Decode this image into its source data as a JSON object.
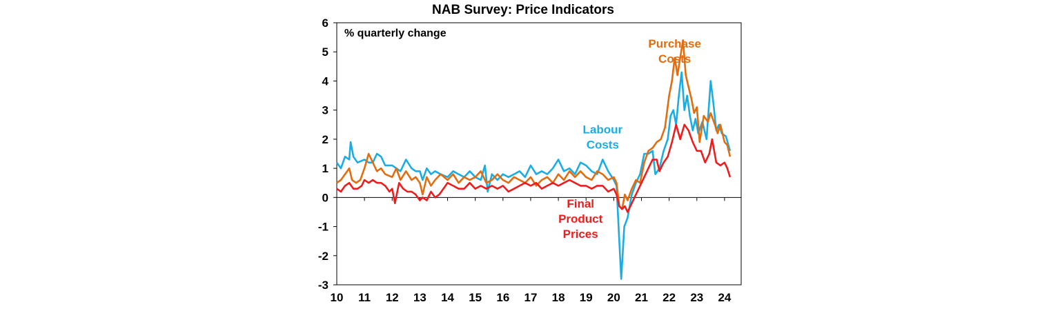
{
  "chart_data": {
    "type": "line",
    "title": "NAB Survey: Price Indicators",
    "ylabel": "% quarterly change",
    "xlabel": "",
    "ylim": [
      -3,
      6
    ],
    "xlim": [
      2010,
      2024.6
    ],
    "grid": false,
    "legend": "inline labels",
    "y_ticks": [
      -3,
      -2,
      -1,
      0,
      1,
      2,
      3,
      4,
      5,
      6
    ],
    "x_ticks": [
      {
        "value": 2010,
        "label": "10"
      },
      {
        "value": 2011,
        "label": "11"
      },
      {
        "value": 2012,
        "label": "12"
      },
      {
        "value": 2013,
        "label": "13"
      },
      {
        "value": 2014,
        "label": "14"
      },
      {
        "value": 2015,
        "label": "15"
      },
      {
        "value": 2016,
        "label": "16"
      },
      {
        "value": 2017,
        "label": "17"
      },
      {
        "value": 2018,
        "label": "18"
      },
      {
        "value": 2019,
        "label": "19"
      },
      {
        "value": 2020,
        "label": "20"
      },
      {
        "value": 2021,
        "label": "21"
      },
      {
        "value": 2022,
        "label": "22"
      },
      {
        "value": 2023,
        "label": "23"
      },
      {
        "value": 2024,
        "label": "24"
      }
    ],
    "series": [
      {
        "name": "Labour Costs",
        "label_lines": [
          "Labour",
          "Costs"
        ],
        "label_anchor": {
          "x": 2019.6,
          "y": 2.2
        },
        "color": "#1aade4",
        "points": [
          [
            2010.0,
            1.2
          ],
          [
            2010.15,
            1.0
          ],
          [
            2010.3,
            1.4
          ],
          [
            2010.45,
            1.3
          ],
          [
            2010.5,
            1.9
          ],
          [
            2010.6,
            1.4
          ],
          [
            2010.75,
            1.2
          ],
          [
            2011.0,
            1.3
          ],
          [
            2011.15,
            1.2
          ],
          [
            2011.3,
            1.2
          ],
          [
            2011.45,
            1.5
          ],
          [
            2011.6,
            1.4
          ],
          [
            2011.75,
            1.1
          ],
          [
            2012.0,
            1.1
          ],
          [
            2012.15,
            1.0
          ],
          [
            2012.3,
            0.9
          ],
          [
            2012.5,
            1.3
          ],
          [
            2012.7,
            1.0
          ],
          [
            2012.85,
            0.9
          ],
          [
            2013.0,
            0.9
          ],
          [
            2013.1,
            0.6
          ],
          [
            2013.25,
            1.0
          ],
          [
            2013.4,
            0.8
          ],
          [
            2013.55,
            0.9
          ],
          [
            2013.75,
            0.8
          ],
          [
            2014.0,
            0.7
          ],
          [
            2014.2,
            0.9
          ],
          [
            2014.4,
            0.8
          ],
          [
            2014.6,
            0.7
          ],
          [
            2014.8,
            0.9
          ],
          [
            2015.0,
            0.7
          ],
          [
            2015.2,
            0.6
          ],
          [
            2015.35,
            1.1
          ],
          [
            2015.45,
            0.2
          ],
          [
            2015.6,
            0.8
          ],
          [
            2015.8,
            0.6
          ],
          [
            2016.0,
            0.8
          ],
          [
            2016.2,
            0.7
          ],
          [
            2016.4,
            0.8
          ],
          [
            2016.6,
            0.9
          ],
          [
            2016.8,
            0.7
          ],
          [
            2017.0,
            1.1
          ],
          [
            2017.2,
            0.8
          ],
          [
            2017.4,
            0.9
          ],
          [
            2017.6,
            0.8
          ],
          [
            2017.8,
            1.0
          ],
          [
            2018.0,
            1.3
          ],
          [
            2018.2,
            0.9
          ],
          [
            2018.4,
            1.0
          ],
          [
            2018.6,
            0.8
          ],
          [
            2018.8,
            1.2
          ],
          [
            2019.0,
            1.1
          ],
          [
            2019.2,
            0.9
          ],
          [
            2019.4,
            0.8
          ],
          [
            2019.6,
            1.3
          ],
          [
            2019.8,
            0.9
          ],
          [
            2020.0,
            0.6
          ],
          [
            2020.1,
            0.4
          ],
          [
            2020.2,
            -1.5
          ],
          [
            2020.27,
            -2.8
          ],
          [
            2020.38,
            -1.0
          ],
          [
            2020.5,
            -0.7
          ],
          [
            2020.65,
            0.1
          ],
          [
            2020.8,
            0.5
          ],
          [
            2020.95,
            0.8
          ],
          [
            2021.1,
            1.5
          ],
          [
            2021.25,
            1.5
          ],
          [
            2021.4,
            1.6
          ],
          [
            2021.5,
            0.8
          ],
          [
            2021.65,
            1.0
          ],
          [
            2021.8,
            1.6
          ],
          [
            2021.95,
            2.0
          ],
          [
            2022.05,
            2.8
          ],
          [
            2022.15,
            3.0
          ],
          [
            2022.25,
            2.5
          ],
          [
            2022.35,
            3.5
          ],
          [
            2022.45,
            4.3
          ],
          [
            2022.55,
            3.0
          ],
          [
            2022.65,
            3.5
          ],
          [
            2022.75,
            2.8
          ],
          [
            2022.85,
            2.3
          ],
          [
            2022.95,
            2.7
          ],
          [
            2023.05,
            2.2
          ],
          [
            2023.2,
            2.6
          ],
          [
            2023.35,
            2.0
          ],
          [
            2023.5,
            4.0
          ],
          [
            2023.6,
            3.2
          ],
          [
            2023.7,
            2.3
          ],
          [
            2023.8,
            2.5
          ],
          [
            2023.9,
            2.2
          ],
          [
            2024.05,
            2.1
          ],
          [
            2024.2,
            1.6
          ]
        ]
      },
      {
        "name": "Purchase Costs",
        "label_lines": [
          "Purchase",
          "Costs"
        ],
        "label_anchor": {
          "x": 2022.2,
          "y": 5.15
        },
        "color": "#e26c0e",
        "points": [
          [
            2010.0,
            0.5
          ],
          [
            2010.15,
            0.6
          ],
          [
            2010.3,
            0.8
          ],
          [
            2010.45,
            1.0
          ],
          [
            2010.55,
            0.6
          ],
          [
            2010.7,
            0.5
          ],
          [
            2010.85,
            0.6
          ],
          [
            2011.0,
            1.0
          ],
          [
            2011.15,
            1.5
          ],
          [
            2011.3,
            1.2
          ],
          [
            2011.45,
            0.9
          ],
          [
            2011.6,
            1.0
          ],
          [
            2011.75,
            0.8
          ],
          [
            2012.0,
            0.7
          ],
          [
            2012.15,
            1.0
          ],
          [
            2012.3,
            0.6
          ],
          [
            2012.5,
            0.9
          ],
          [
            2012.7,
            0.6
          ],
          [
            2012.85,
            0.7
          ],
          [
            2013.0,
            0.5
          ],
          [
            2013.1,
            0.1
          ],
          [
            2013.25,
            0.7
          ],
          [
            2013.4,
            0.4
          ],
          [
            2013.55,
            0.6
          ],
          [
            2013.75,
            0.8
          ],
          [
            2014.0,
            0.6
          ],
          [
            2014.2,
            0.8
          ],
          [
            2014.4,
            0.5
          ],
          [
            2014.6,
            0.7
          ],
          [
            2014.8,
            0.6
          ],
          [
            2015.0,
            0.7
          ],
          [
            2015.2,
            0.9
          ],
          [
            2015.4,
            0.5
          ],
          [
            2015.6,
            0.6
          ],
          [
            2015.8,
            0.8
          ],
          [
            2016.0,
            0.6
          ],
          [
            2016.2,
            0.5
          ],
          [
            2016.4,
            0.7
          ],
          [
            2016.6,
            0.6
          ],
          [
            2016.8,
            0.5
          ],
          [
            2017.0,
            0.7
          ],
          [
            2017.2,
            0.4
          ],
          [
            2017.4,
            0.6
          ],
          [
            2017.6,
            0.7
          ],
          [
            2017.8,
            0.5
          ],
          [
            2018.0,
            0.8
          ],
          [
            2018.2,
            0.6
          ],
          [
            2018.4,
            0.9
          ],
          [
            2018.6,
            0.7
          ],
          [
            2018.8,
            0.9
          ],
          [
            2019.0,
            0.7
          ],
          [
            2019.2,
            0.6
          ],
          [
            2019.4,
            0.9
          ],
          [
            2019.6,
            0.8
          ],
          [
            2019.8,
            0.6
          ],
          [
            2020.0,
            0.7
          ],
          [
            2020.1,
            0.5
          ],
          [
            2020.2,
            -0.3
          ],
          [
            2020.3,
            -0.4
          ],
          [
            2020.4,
            0.1
          ],
          [
            2020.5,
            -0.1
          ],
          [
            2020.65,
            0.3
          ],
          [
            2020.8,
            0.6
          ],
          [
            2020.95,
            0.5
          ],
          [
            2021.1,
            1.2
          ],
          [
            2021.25,
            1.6
          ],
          [
            2021.4,
            1.7
          ],
          [
            2021.55,
            1.9
          ],
          [
            2021.7,
            2.0
          ],
          [
            2021.85,
            2.4
          ],
          [
            2022.0,
            3.5
          ],
          [
            2022.1,
            4.0
          ],
          [
            2022.2,
            4.8
          ],
          [
            2022.3,
            4.2
          ],
          [
            2022.4,
            4.8
          ],
          [
            2022.5,
            5.4
          ],
          [
            2022.6,
            4.2
          ],
          [
            2022.7,
            3.8
          ],
          [
            2022.8,
            3.4
          ],
          [
            2022.9,
            2.9
          ],
          [
            2023.0,
            3.1
          ],
          [
            2023.1,
            1.9
          ],
          [
            2023.25,
            2.8
          ],
          [
            2023.4,
            2.6
          ],
          [
            2023.5,
            2.9
          ],
          [
            2023.65,
            2.5
          ],
          [
            2023.75,
            2.2
          ],
          [
            2023.85,
            2.5
          ],
          [
            2024.0,
            1.9
          ],
          [
            2024.1,
            1.8
          ],
          [
            2024.2,
            1.4
          ]
        ]
      },
      {
        "name": "Final Product Prices",
        "label_lines": [
          "Final",
          "Product",
          "Prices"
        ],
        "label_anchor": {
          "x": 2018.8,
          "y": -0.35
        },
        "color": "#ee1c1c",
        "points": [
          [
            2010.0,
            0.3
          ],
          [
            2010.15,
            0.2
          ],
          [
            2010.3,
            0.4
          ],
          [
            2010.45,
            0.5
          ],
          [
            2010.6,
            0.3
          ],
          [
            2010.75,
            0.3
          ],
          [
            2010.9,
            0.4
          ],
          [
            2011.0,
            0.6
          ],
          [
            2011.15,
            0.5
          ],
          [
            2011.3,
            0.6
          ],
          [
            2011.45,
            0.5
          ],
          [
            2011.6,
            0.5
          ],
          [
            2011.75,
            0.4
          ],
          [
            2011.9,
            0.2
          ],
          [
            2012.0,
            0.3
          ],
          [
            2012.1,
            -0.2
          ],
          [
            2012.25,
            0.5
          ],
          [
            2012.4,
            0.3
          ],
          [
            2012.55,
            0.2
          ],
          [
            2012.7,
            0.2
          ],
          [
            2012.85,
            0.1
          ],
          [
            2013.0,
            -0.1
          ],
          [
            2013.1,
            0.0
          ],
          [
            2013.25,
            -0.1
          ],
          [
            2013.4,
            0.2
          ],
          [
            2013.55,
            0.0
          ],
          [
            2013.7,
            0.1
          ],
          [
            2013.85,
            0.3
          ],
          [
            2014.0,
            0.5
          ],
          [
            2014.2,
            0.4
          ],
          [
            2014.4,
            0.3
          ],
          [
            2014.6,
            0.3
          ],
          [
            2014.8,
            0.5
          ],
          [
            2015.0,
            0.3
          ],
          [
            2015.2,
            0.4
          ],
          [
            2015.4,
            0.3
          ],
          [
            2015.6,
            0.4
          ],
          [
            2015.8,
            0.3
          ],
          [
            2016.0,
            0.4
          ],
          [
            2016.2,
            0.2
          ],
          [
            2016.4,
            0.3
          ],
          [
            2016.6,
            0.4
          ],
          [
            2016.8,
            0.5
          ],
          [
            2017.0,
            0.4
          ],
          [
            2017.2,
            0.5
          ],
          [
            2017.4,
            0.3
          ],
          [
            2017.6,
            0.4
          ],
          [
            2017.8,
            0.5
          ],
          [
            2018.0,
            0.4
          ],
          [
            2018.2,
            0.5
          ],
          [
            2018.4,
            0.6
          ],
          [
            2018.6,
            0.5
          ],
          [
            2018.8,
            0.4
          ],
          [
            2019.0,
            0.4
          ],
          [
            2019.2,
            0.3
          ],
          [
            2019.4,
            0.4
          ],
          [
            2019.6,
            0.4
          ],
          [
            2019.8,
            0.2
          ],
          [
            2020.0,
            0.3
          ],
          [
            2020.1,
            0.1
          ],
          [
            2020.2,
            -0.3
          ],
          [
            2020.3,
            -0.4
          ],
          [
            2020.4,
            -0.3
          ],
          [
            2020.5,
            -0.5
          ],
          [
            2020.65,
            -0.2
          ],
          [
            2020.8,
            0.1
          ],
          [
            2020.95,
            0.4
          ],
          [
            2021.1,
            0.7
          ],
          [
            2021.25,
            1.0
          ],
          [
            2021.4,
            1.3
          ],
          [
            2021.55,
            1.3
          ],
          [
            2021.65,
            0.9
          ],
          [
            2021.8,
            1.2
          ],
          [
            2021.95,
            1.4
          ],
          [
            2022.1,
            1.9
          ],
          [
            2022.25,
            2.5
          ],
          [
            2022.4,
            2.0
          ],
          [
            2022.55,
            2.5
          ],
          [
            2022.7,
            2.3
          ],
          [
            2022.85,
            1.9
          ],
          [
            2023.0,
            1.6
          ],
          [
            2023.15,
            1.6
          ],
          [
            2023.3,
            1.2
          ],
          [
            2023.45,
            1.5
          ],
          [
            2023.55,
            2.0
          ],
          [
            2023.7,
            1.2
          ],
          [
            2023.85,
            1.1
          ],
          [
            2024.0,
            1.2
          ],
          [
            2024.1,
            1.0
          ],
          [
            2024.2,
            0.7
          ]
        ]
      }
    ]
  }
}
